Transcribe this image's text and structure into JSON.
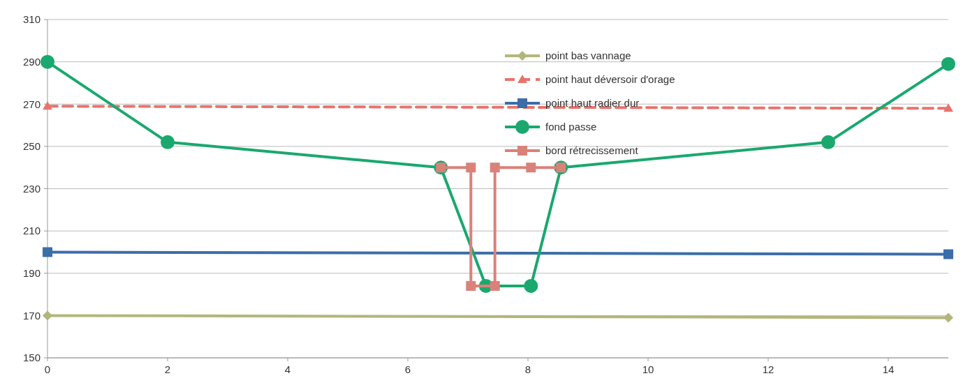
{
  "chart_data": {
    "type": "line",
    "xlim": [
      0,
      15
    ],
    "xticks": [
      0,
      2,
      4,
      6,
      8,
      10,
      12,
      14
    ],
    "ylim": [
      150,
      310
    ],
    "yticks": [
      150,
      170,
      190,
      210,
      230,
      250,
      270,
      290,
      310
    ],
    "grid": "y",
    "legend": "top right",
    "series": [
      {
        "name": "point bas vannage",
        "color": "#b3b67a",
        "x": [
          0,
          15
        ],
        "values": [
          170,
          169
        ],
        "marker": "diamond",
        "line_style": "solid"
      },
      {
        "name": "point haut déversoir d'orage",
        "color": "#e8736c",
        "x": [
          0,
          15
        ],
        "values": [
          269,
          268
        ],
        "marker": "triangle",
        "line_style": "dashed"
      },
      {
        "name": "point haut radier dur",
        "color": "#3b6ea8",
        "x": [
          0,
          15
        ],
        "values": [
          200,
          199
        ],
        "marker": "square",
        "line_style": "solid"
      },
      {
        "name": "fond passe",
        "color": "#1aa86e",
        "x": [
          0,
          2,
          6.55,
          7.3,
          8.05,
          8.55,
          13,
          15
        ],
        "values": [
          290,
          252,
          240,
          184,
          184,
          240,
          252,
          289
        ],
        "marker": "circle",
        "line_style": "solid"
      },
      {
        "name": "bord rétrecissement",
        "color": "#d9827a",
        "x": [
          6.55,
          7.05,
          7.05,
          7.45,
          7.45,
          8.05,
          8.55
        ],
        "values": [
          240,
          240,
          184,
          184,
          240,
          240,
          240
        ],
        "marker": "square",
        "line_style": "solid"
      }
    ]
  }
}
